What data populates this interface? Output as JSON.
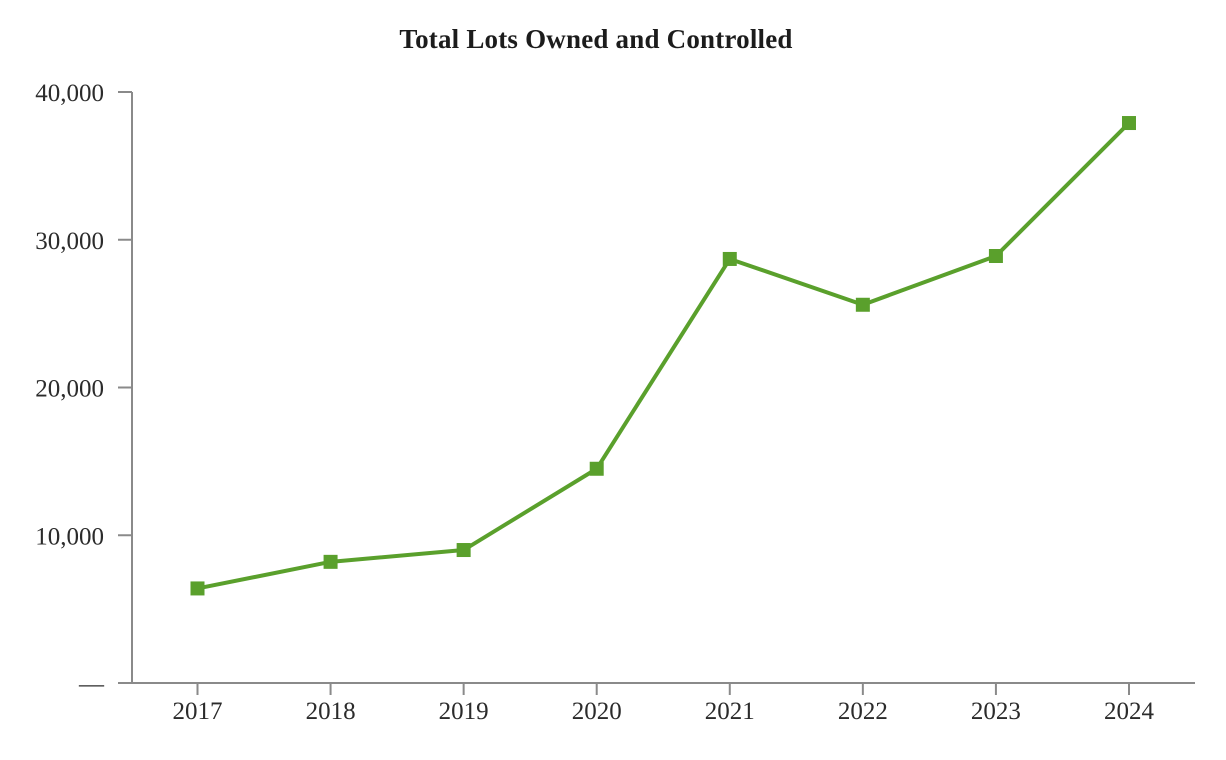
{
  "chart_data": {
    "type": "line",
    "title": "Total Lots Owned and Controlled",
    "categories": [
      "2017",
      "2018",
      "2019",
      "2020",
      "2021",
      "2022",
      "2023",
      "2024"
    ],
    "series": [
      {
        "name": "Total Lots Owned and Controlled",
        "values": [
          6400,
          8200,
          9000,
          14500,
          28700,
          25600,
          28900,
          37900
        ]
      }
    ],
    "xlabel": "",
    "ylabel": "",
    "ylim": [
      0,
      40000
    ],
    "y_ticks": [
      {
        "value": 0,
        "label": "—"
      },
      {
        "value": 10000,
        "label": "10,000"
      },
      {
        "value": 20000,
        "label": "20,000"
      },
      {
        "value": 30000,
        "label": "30,000"
      },
      {
        "value": 40000,
        "label": "40,000"
      }
    ],
    "grid": false,
    "legend_position": "none",
    "marker_shape": "square",
    "colors": {
      "line": "#5aa02c",
      "marker": "#5aa02c",
      "axis": "#8a8a8a",
      "tick_label": "#2b2b2b",
      "title": "#1c1c1c"
    }
  }
}
